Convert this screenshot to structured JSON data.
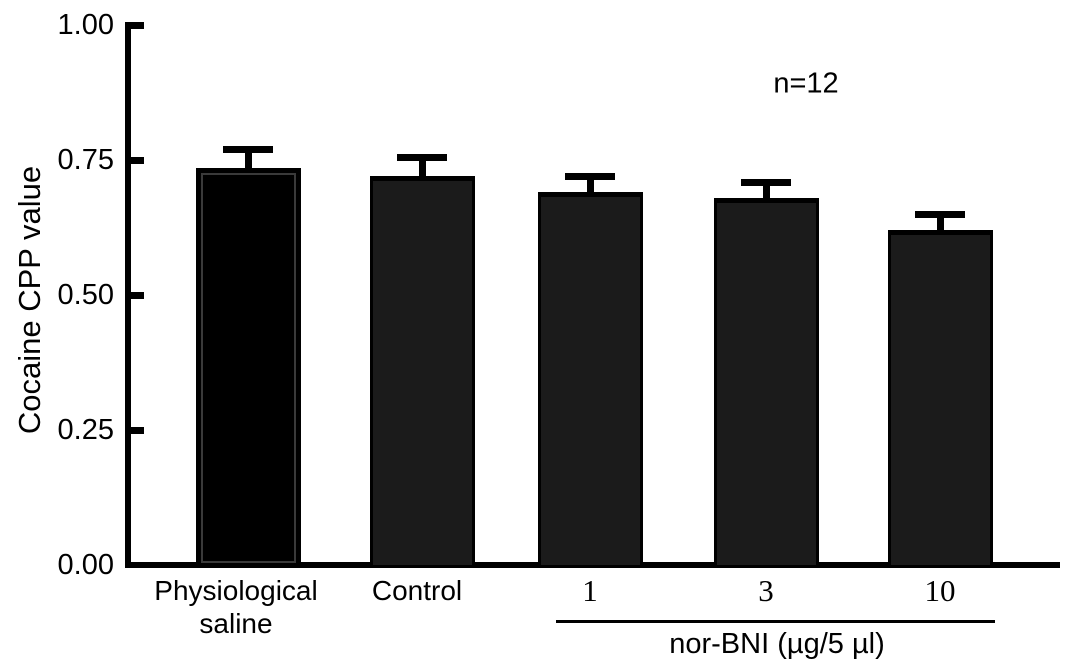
{
  "chart_data": {
    "type": "bar",
    "title": "",
    "ylabel": "Cocaine CPP value",
    "xlabel": "",
    "ylim": [
      0.0,
      1.0
    ],
    "grid": false,
    "legend": null,
    "annotation": "n=12",
    "yticks": [
      {
        "label": "1.00",
        "value": 1.0
      },
      {
        "label": "0.75",
        "value": 0.75
      },
      {
        "label": "0.50",
        "value": 0.5
      },
      {
        "label": "0.25",
        "value": 0.25
      },
      {
        "label": "0.00",
        "value": 0.0
      }
    ],
    "categories": [
      "Physiological\nsaline",
      "Control",
      "1",
      "3",
      "10"
    ],
    "values": [
      0.735,
      0.72,
      0.69,
      0.68,
      0.62
    ],
    "errors_plus": [
      0.035,
      0.035,
      0.03,
      0.029,
      0.03
    ],
    "bar_colors": [
      "#000000",
      "#1b1b1b",
      "#1b1b1b",
      "#1b1b1b",
      "#1b1b1b"
    ],
    "group_label": "nor-BNI (µg/5 µl)",
    "group_members": [
      "1",
      "3",
      "10"
    ]
  }
}
